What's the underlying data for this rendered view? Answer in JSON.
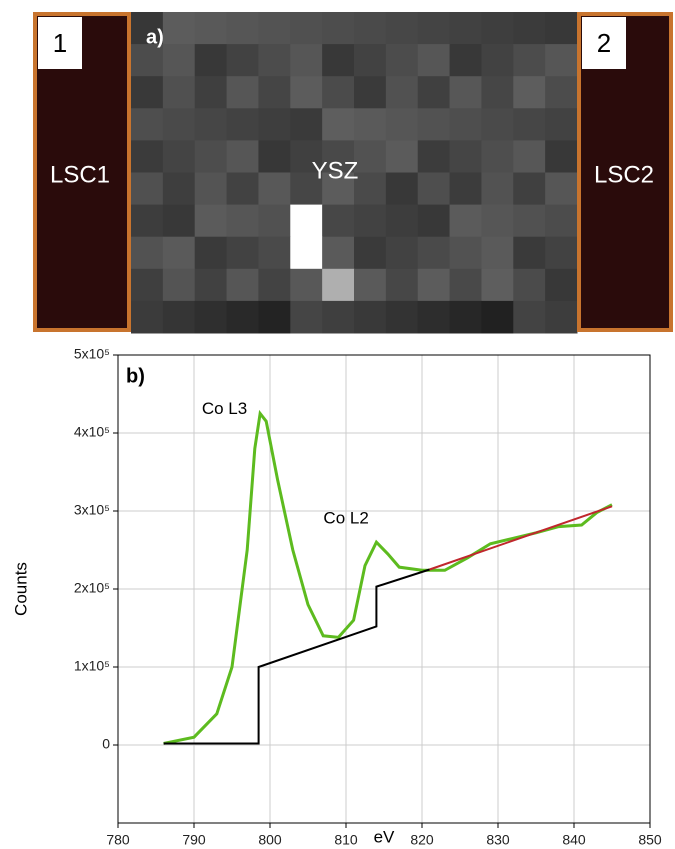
{
  "panel_a": {
    "label": "a)",
    "center_label": "YSZ",
    "left": {
      "number": "1",
      "label": "LSC1"
    },
    "right": {
      "number": "2",
      "label": "LSC2"
    }
  },
  "chart_data": {
    "type": "line",
    "panel_label": "b)",
    "x_label": "eV",
    "y_label": "Counts",
    "xlim": [
      780,
      850
    ],
    "xticks": [
      780,
      790,
      800,
      810,
      820,
      830,
      840,
      850
    ],
    "ylim": [
      -100000,
      500000
    ],
    "yticks": [
      0,
      {
        "value": 100000,
        "label": "1x10⁵"
      },
      {
        "value": 200000,
        "label": "2x10⁵"
      },
      {
        "value": 300000,
        "label": "3x10⁵"
      },
      {
        "value": 400000,
        "label": "4x10⁵"
      },
      {
        "value": 500000,
        "label": "5x10⁵"
      }
    ],
    "grid": true,
    "annotations": [
      {
        "text": "Co L3",
        "x": 797,
        "y": 430000
      },
      {
        "text": "Co L2",
        "x": 813,
        "y": 290000
      }
    ],
    "series": [
      {
        "color": "#5dbb1f",
        "x": [
          786,
          790,
          793,
          795,
          797,
          798,
          798.7,
          799.5,
          801,
          803,
          805,
          807,
          809,
          811,
          812.5,
          814,
          815.5,
          817,
          820,
          823,
          826,
          829,
          832,
          835,
          838,
          841,
          843,
          845
        ],
        "values": [
          2000,
          10000,
          40000,
          100000,
          250000,
          380000,
          425000,
          415000,
          340000,
          250000,
          180000,
          140000,
          138000,
          160000,
          230000,
          260000,
          245000,
          228000,
          224000,
          224000,
          240000,
          258000,
          265000,
          272000,
          280000,
          282000,
          298000,
          308000
        ]
      },
      {
        "color": "#000000",
        "x": [
          786,
          798.5,
          798.5,
          814,
          814,
          821
        ],
        "values": [
          2000,
          2000,
          100000,
          152000,
          203000,
          225000
        ]
      },
      {
        "color": "#c0272d",
        "x": [
          821,
          845
        ],
        "values": [
          225000,
          306000
        ]
      }
    ]
  }
}
